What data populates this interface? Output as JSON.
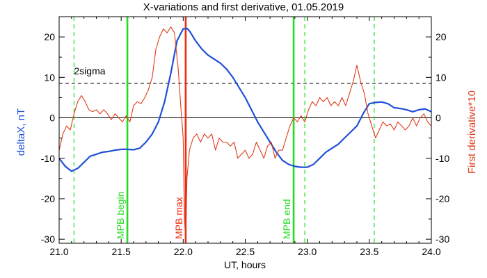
{
  "chart_data": {
    "type": "line",
    "title": "X-variations and first derivative, 01.05.2019",
    "xlabel": "UT, hours",
    "ylabel_left": "deltaX, nT",
    "ylabel_right": "First derivative*10",
    "xlim": [
      21.0,
      24.0
    ],
    "ylim": [
      -31,
      25
    ],
    "x_ticks": [
      21.0,
      21.5,
      22.0,
      22.5,
      23.0,
      23.5,
      24.0
    ],
    "x_tick_labels": [
      "21.0",
      "21.5",
      "22.0",
      "22.5",
      "23.0",
      "23.5",
      "24.0"
    ],
    "y_ticks": [
      -30,
      -20,
      -10,
      0,
      10,
      20
    ],
    "y_tick_labels": [
      "-30",
      "-20",
      "-10",
      "0",
      "10",
      "20"
    ],
    "zero_line": 0,
    "threshold": {
      "label": "2sigma",
      "value": 8.5
    },
    "colors": {
      "deltax": "#1f4fd6",
      "derivative": "#e03a1a",
      "mpb": "#22dd22",
      "max": "#ee2a10",
      "left_label": "#1f4fd6",
      "right_label": "#e03a1a"
    },
    "markers": [
      {
        "type": "solid",
        "x": 21.55,
        "label": "MPB begin",
        "color": "#22dd22"
      },
      {
        "type": "solid",
        "x": 22.02,
        "label": "MPB max",
        "color": "#ee2a10"
      },
      {
        "type": "solid",
        "x": 22.89,
        "label": "MPB end",
        "color": "#22dd22"
      },
      {
        "type": "dashed",
        "x": 21.12,
        "color": "#22dd22"
      },
      {
        "type": "dashed",
        "x": 22.98,
        "color": "#22dd22"
      },
      {
        "type": "dashed",
        "x": 23.54,
        "color": "#22dd22"
      }
    ],
    "series": [
      {
        "key": "deltax",
        "x": [
          21.0,
          21.05,
          21.1,
          21.15,
          21.2,
          21.25,
          21.3,
          21.35,
          21.4,
          21.45,
          21.5,
          21.55,
          21.6,
          21.65,
          21.7,
          21.75,
          21.8,
          21.85,
          21.9,
          21.95,
          22.0,
          22.03,
          22.05,
          22.1,
          22.15,
          22.2,
          22.25,
          22.3,
          22.35,
          22.4,
          22.45,
          22.5,
          22.55,
          22.6,
          22.65,
          22.7,
          22.75,
          22.8,
          22.85,
          22.9,
          22.95,
          23.0,
          23.05,
          23.1,
          23.15,
          23.2,
          23.25,
          23.3,
          23.35,
          23.4,
          23.45,
          23.5,
          23.55,
          23.6,
          23.65,
          23.7,
          23.75,
          23.8,
          23.85,
          23.9,
          23.95,
          24.0
        ],
        "y": [
          -10,
          -12,
          -13.2,
          -12.5,
          -11,
          -9.5,
          -9,
          -8.5,
          -8.3,
          -8,
          -7.8,
          -7.8,
          -7.9,
          -7.5,
          -6,
          -4,
          -1,
          4,
          11,
          19,
          22,
          22.1,
          21.5,
          19,
          17,
          15.5,
          14.5,
          13.5,
          12,
          10,
          7.5,
          5,
          2,
          -1,
          -3.5,
          -6,
          -8.5,
          -10.5,
          -11.5,
          -12,
          -12.2,
          -12.2,
          -11.5,
          -10,
          -8.5,
          -7.5,
          -6.5,
          -5,
          -3.5,
          -2,
          1,
          3.5,
          3.8,
          3.9,
          3.5,
          2.5,
          2.3,
          2,
          1.5,
          2,
          2.2,
          1.5
        ]
      },
      {
        "key": "derivative",
        "x": [
          21.0,
          21.03,
          21.06,
          21.09,
          21.12,
          21.15,
          21.18,
          21.21,
          21.24,
          21.27,
          21.3,
          21.33,
          21.36,
          21.39,
          21.42,
          21.45,
          21.48,
          21.51,
          21.54,
          21.57,
          21.6,
          21.63,
          21.66,
          21.69,
          21.72,
          21.75,
          21.78,
          21.81,
          21.84,
          21.87,
          21.9,
          21.93,
          21.96,
          21.98,
          22.0,
          22.01,
          22.02,
          22.03,
          22.05,
          22.08,
          22.11,
          22.14,
          22.17,
          22.2,
          22.23,
          22.26,
          22.29,
          22.32,
          22.35,
          22.38,
          22.41,
          22.44,
          22.47,
          22.5,
          22.53,
          22.56,
          22.59,
          22.62,
          22.65,
          22.68,
          22.71,
          22.74,
          22.77,
          22.8,
          22.83,
          22.86,
          22.89,
          22.92,
          22.95,
          22.98,
          23.01,
          23.04,
          23.07,
          23.1,
          23.13,
          23.16,
          23.19,
          23.22,
          23.25,
          23.28,
          23.31,
          23.34,
          23.37,
          23.4,
          23.43,
          23.46,
          23.49,
          23.52,
          23.55,
          23.58,
          23.61,
          23.64,
          23.67,
          23.7,
          23.73,
          23.76,
          23.79,
          23.82,
          23.85,
          23.88,
          23.91,
          23.94,
          23.97,
          24.0
        ],
        "y": [
          -8,
          -4,
          -2,
          -3,
          1,
          4,
          5.5,
          4,
          2,
          1.5,
          2,
          1,
          2,
          1,
          -0.5,
          1,
          0,
          -1,
          0.5,
          -1,
          3,
          4,
          3.5,
          5,
          7,
          10,
          17,
          20,
          22,
          21,
          22.5,
          21,
          12,
          3,
          -5,
          -25,
          -30,
          -15,
          -8,
          -5,
          -4,
          -6,
          -4,
          -5,
          -4,
          -8,
          -5,
          -6,
          -6,
          -7,
          -6,
          -10,
          -9,
          -8,
          -10,
          -9,
          -6,
          -8,
          -10,
          -7,
          -6,
          -10,
          -8,
          -8,
          -5,
          -2,
          0,
          -1,
          0.5,
          -1,
          2,
          4,
          3,
          5,
          4,
          5,
          3,
          4,
          3,
          5,
          3,
          6,
          9,
          13,
          9,
          6,
          1,
          -2,
          -5,
          -3,
          -1,
          -2,
          -1.5,
          -3,
          -1,
          -2,
          -3,
          -2,
          0,
          -2,
          0,
          1,
          -1,
          -2
        ]
      }
    ]
  }
}
